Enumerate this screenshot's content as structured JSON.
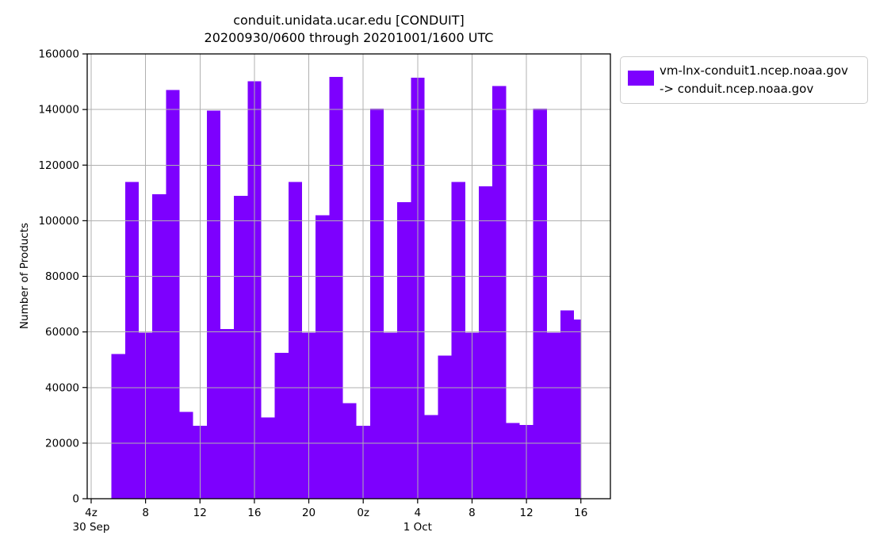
{
  "figure": {
    "kind": "static-plot-image"
  },
  "legend": {
    "line1": "vm-lnx-conduit1.ncep.noaa.gov",
    "line2": "-> conduit.ncep.noaa.gov",
    "swatch_color": "#7d00fe"
  },
  "chart_data": {
    "type": "bar",
    "title": "conduit.unidata.ucar.edu [CONDUIT]",
    "subtitle": "20200930/0600 through 20201001/1600 UTC",
    "xlabel": "",
    "ylabel": "Number of Products",
    "ylim": [
      0,
      160000
    ],
    "yticks": [
      0,
      20000,
      40000,
      60000,
      80000,
      100000,
      120000,
      140000,
      160000
    ],
    "grid": true,
    "grid_color": "#b0b0b0",
    "grid_on_top": true,
    "bar_color": "#7d00fe",
    "legend_position": "outside upper right",
    "series_name": "vm-lnx-conduit1.ncep.noaa.gov -> conduit.ncep.noaa.gov",
    "x_hours_domain": [
      3.71,
      42.17
    ],
    "x_hour_zero": "30 Sep 00:00 UTC",
    "xticks": [
      {
        "h": 4,
        "label": "4z"
      },
      {
        "h": 8,
        "label": "8"
      },
      {
        "h": 12,
        "label": "12"
      },
      {
        "h": 16,
        "label": "16"
      },
      {
        "h": 20,
        "label": "20"
      },
      {
        "h": 24,
        "label": "0z"
      },
      {
        "h": 28,
        "label": "4"
      },
      {
        "h": 32,
        "label": "8"
      },
      {
        "h": 36,
        "label": "12"
      },
      {
        "h": 40,
        "label": "16"
      }
    ],
    "day_labels": [
      {
        "h": 4,
        "label": "30 Sep"
      },
      {
        "h": 28,
        "label": "1 Oct"
      }
    ],
    "bin_width_hours": 1,
    "last_bin_end_hour": 40,
    "bins": [
      {
        "time": "30 Sep 06z",
        "h": 6,
        "value": 52000
      },
      {
        "time": "30 Sep 07z",
        "h": 7,
        "value": 113900
      },
      {
        "time": "30 Sep 08z",
        "h": 8,
        "value": 59700
      },
      {
        "time": "30 Sep 09z",
        "h": 9,
        "value": 109500
      },
      {
        "time": "30 Sep 10z",
        "h": 10,
        "value": 147000
      },
      {
        "time": "30 Sep 11z",
        "h": 11,
        "value": 31300
      },
      {
        "time": "30 Sep 12z",
        "h": 12,
        "value": 26200
      },
      {
        "time": "30 Sep 13z",
        "h": 13,
        "value": 139600
      },
      {
        "time": "30 Sep 14z",
        "h": 14,
        "value": 61000
      },
      {
        "time": "30 Sep 15z",
        "h": 15,
        "value": 108900
      },
      {
        "time": "30 Sep 16z",
        "h": 16,
        "value": 150100
      },
      {
        "time": "30 Sep 17z",
        "h": 17,
        "value": 29200
      },
      {
        "time": "30 Sep 18z",
        "h": 18,
        "value": 52500
      },
      {
        "time": "30 Sep 19z",
        "h": 19,
        "value": 113900
      },
      {
        "time": "30 Sep 20z",
        "h": 20,
        "value": 59700
      },
      {
        "time": "30 Sep 21z",
        "h": 21,
        "value": 101900
      },
      {
        "time": "30 Sep 22z",
        "h": 22,
        "value": 151700
      },
      {
        "time": "30 Sep 23z",
        "h": 23,
        "value": 34400
      },
      {
        "time": "1 Oct 00z",
        "h": 24,
        "value": 26300
      },
      {
        "time": "1 Oct 01z",
        "h": 25,
        "value": 140300
      },
      {
        "time": "1 Oct 02z",
        "h": 26,
        "value": 59700
      },
      {
        "time": "1 Oct 03z",
        "h": 27,
        "value": 106700
      },
      {
        "time": "1 Oct 04z",
        "h": 28,
        "value": 151400
      },
      {
        "time": "1 Oct 05z",
        "h": 29,
        "value": 30100
      },
      {
        "time": "1 Oct 06z",
        "h": 30,
        "value": 51500
      },
      {
        "time": "1 Oct 07z",
        "h": 31,
        "value": 113900
      },
      {
        "time": "1 Oct 08z",
        "h": 32,
        "value": 59700
      },
      {
        "time": "1 Oct 09z",
        "h": 33,
        "value": 112400
      },
      {
        "time": "1 Oct 10z",
        "h": 34,
        "value": 148500
      },
      {
        "time": "1 Oct 11z",
        "h": 35,
        "value": 27300
      },
      {
        "time": "1 Oct 12z",
        "h": 36,
        "value": 26500
      },
      {
        "time": "1 Oct 13z",
        "h": 37,
        "value": 140300
      },
      {
        "time": "1 Oct 14z",
        "h": 38,
        "value": 59700
      },
      {
        "time": "1 Oct 15z",
        "h": 39,
        "value": 67700
      },
      {
        "time": "1 Oct 16z",
        "h": 40,
        "value": 64500
      }
    ]
  }
}
